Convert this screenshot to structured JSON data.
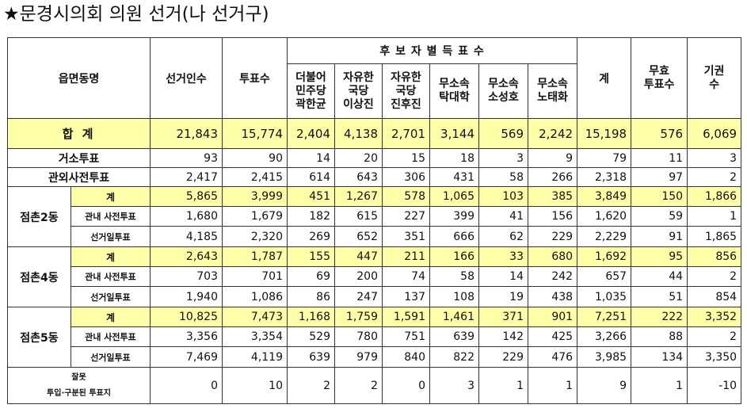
{
  "title": "★문경시의회 의원 선거(나 선거구)",
  "headers": {
    "area": "읍면동명",
    "electors": "선거인수",
    "turnout": "투표수",
    "candidates_group": "후 보 자 별 득 표 수",
    "candidates": [
      [
        "더불어",
        "민주당",
        "곽한균"
      ],
      [
        "자유한",
        "국당",
        "이상진"
      ],
      [
        "자유한",
        "국당",
        "진후진"
      ],
      [
        "무소속",
        "탁대학"
      ],
      [
        "무소속",
        "소성호"
      ],
      [
        "무소속",
        "노태화"
      ]
    ],
    "sum": "계",
    "invalid": [
      "무효",
      "투표수"
    ],
    "abstain": [
      "기권",
      "수"
    ]
  },
  "rows": {
    "total": {
      "label": "합 계",
      "values": [
        "21,843",
        "15,774",
        "2,404",
        "4,138",
        "2,701",
        "3,144",
        "569",
        "2,242",
        "15,198",
        "576",
        "6,069"
      ]
    },
    "home": {
      "label": "거소투표",
      "values": [
        "93",
        "90",
        "14",
        "20",
        "15",
        "18",
        "3",
        "9",
        "79",
        "11",
        "3"
      ]
    },
    "outside": {
      "label": "관외사전투표",
      "values": [
        "2,417",
        "2,415",
        "614",
        "643",
        "306",
        "431",
        "58",
        "266",
        "2,318",
        "97",
        "2"
      ]
    },
    "districts": [
      {
        "name": "점촌2동",
        "sub": [
          {
            "label": "계",
            "values": [
              "5,865",
              "3,999",
              "451",
              "1,267",
              "578",
              "1,065",
              "103",
              "385",
              "3,849",
              "150",
              "1,866"
            ]
          },
          {
            "label": "관내 사전투표",
            "values": [
              "1,680",
              "1,679",
              "182",
              "615",
              "227",
              "399",
              "41",
              "156",
              "1,620",
              "59",
              "1"
            ]
          },
          {
            "label": "선거일투표",
            "values": [
              "4,185",
              "2,320",
              "269",
              "652",
              "351",
              "666",
              "62",
              "229",
              "2,229",
              "91",
              "1,865"
            ]
          }
        ]
      },
      {
        "name": "점촌4동",
        "sub": [
          {
            "label": "계",
            "values": [
              "2,643",
              "1,787",
              "155",
              "447",
              "211",
              "166",
              "33",
              "680",
              "1,692",
              "95",
              "856"
            ]
          },
          {
            "label": "관내 사전투표",
            "values": [
              "703",
              "701",
              "69",
              "200",
              "74",
              "58",
              "14",
              "242",
              "657",
              "44",
              "2"
            ]
          },
          {
            "label": "선거일투표",
            "values": [
              "1,940",
              "1,086",
              "86",
              "247",
              "137",
              "108",
              "19",
              "438",
              "1,035",
              "51",
              "854"
            ]
          }
        ]
      },
      {
        "name": "점촌5동",
        "sub": [
          {
            "label": "계",
            "values": [
              "10,825",
              "7,473",
              "1,168",
              "1,759",
              "1,591",
              "1,461",
              "371",
              "901",
              "7,251",
              "222",
              "3,352"
            ]
          },
          {
            "label": "관내 사전투표",
            "values": [
              "3,356",
              "3,354",
              "529",
              "780",
              "751",
              "639",
              "142",
              "425",
              "3,266",
              "88",
              "2"
            ]
          },
          {
            "label": "선거일투표",
            "values": [
              "7,469",
              "4,119",
              "639",
              "979",
              "840",
              "822",
              "229",
              "476",
              "3,985",
              "134",
              "3,350"
            ]
          }
        ]
      }
    ],
    "misc": {
      "label": [
        "잘못",
        "투입·구분된 투표지"
      ],
      "values": [
        "0",
        "10",
        "2",
        "2",
        "0",
        "3",
        "1",
        "1",
        "9",
        "1",
        "-10"
      ]
    }
  },
  "colors": {
    "highlight": "#ffffa8",
    "border": "#333333"
  }
}
